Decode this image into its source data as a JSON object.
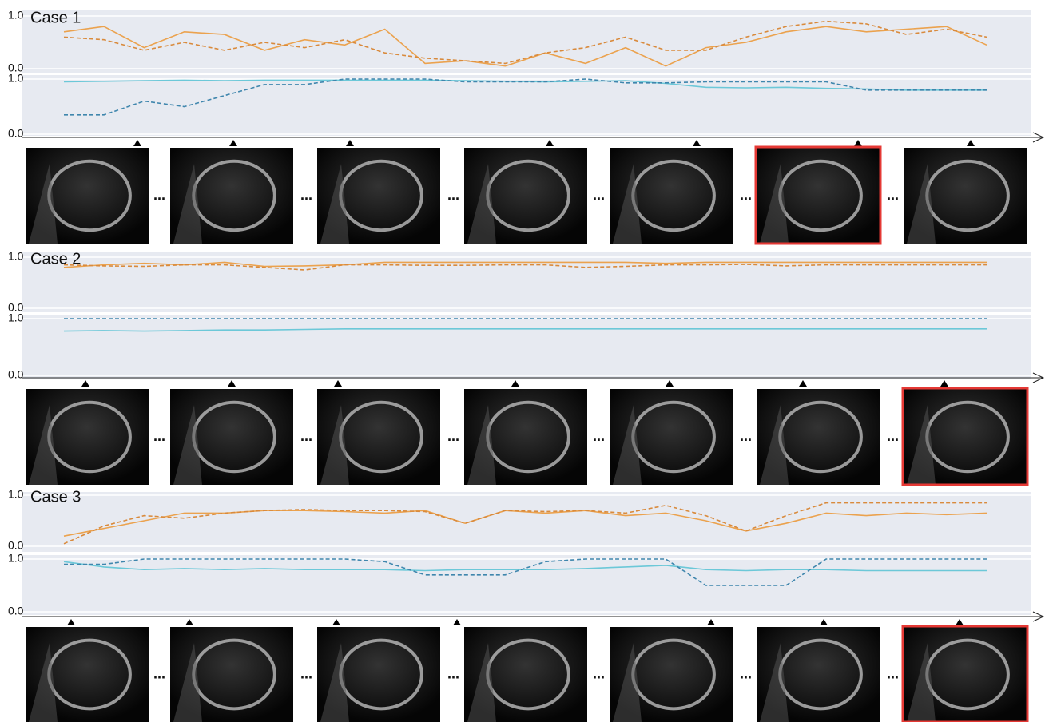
{
  "separator": "...",
  "chart_data": [
    {
      "type": "line",
      "title": "Case 1",
      "ylim": [
        0,
        1
      ],
      "yticks": [
        {
          "value": 0,
          "label": "0.0"
        },
        {
          "value": 1,
          "label": "1.0"
        }
      ],
      "series": [
        {
          "color": "#eba24e",
          "dash": false,
          "values": [
            0.7,
            0.8,
            0.4,
            0.7,
            0.65,
            0.35,
            0.55,
            0.45,
            0.75,
            0.1,
            0.15,
            0.05,
            0.3,
            0.1,
            0.4,
            0.05,
            0.4,
            0.5,
            0.7,
            0.8,
            0.7,
            0.75,
            0.8,
            0.45
          ]
        },
        {
          "color": "#d98a3c",
          "dash": true,
          "values": [
            0.6,
            0.55,
            0.35,
            0.5,
            0.35,
            0.5,
            0.4,
            0.55,
            0.3,
            0.2,
            0.15,
            0.1,
            0.3,
            0.4,
            0.6,
            0.35,
            0.35,
            0.6,
            0.8,
            0.9,
            0.85,
            0.65,
            0.75,
            0.6
          ]
        }
      ]
    },
    {
      "type": "line",
      "ylim": [
        0,
        1
      ],
      "yticks": [
        {
          "value": 0,
          "label": "0.0"
        },
        {
          "value": 1,
          "label": "1.0"
        }
      ],
      "series": [
        {
          "color": "#6cc8d8",
          "dash": false,
          "values": [
            0.95,
            0.96,
            0.97,
            0.98,
            0.97,
            0.98,
            0.98,
            0.98,
            0.98,
            0.98,
            0.97,
            0.96,
            0.95,
            0.96,
            0.97,
            0.92,
            0.85,
            0.84,
            0.85,
            0.83,
            0.82,
            0.8,
            0.8,
            0.8
          ]
        },
        {
          "color": "#3f86ad",
          "dash": true,
          "values": [
            0.35,
            0.35,
            0.6,
            0.5,
            0.7,
            0.9,
            0.9,
            1.0,
            1.0,
            1.0,
            0.95,
            0.95,
            0.95,
            1.0,
            0.93,
            0.93,
            0.95,
            0.95,
            0.95,
            0.95,
            0.8,
            0.8,
            0.8,
            0.8
          ]
        }
      ]
    },
    {
      "type": "line",
      "title": "Case 2",
      "ylim": [
        0,
        1
      ],
      "yticks": [
        {
          "value": 0,
          "label": "0.0"
        },
        {
          "value": 1,
          "label": "1.0"
        }
      ],
      "series": [
        {
          "color": "#eba24e",
          "dash": false,
          "values": [
            0.8,
            0.85,
            0.88,
            0.85,
            0.9,
            0.82,
            0.83,
            0.85,
            0.9,
            0.9,
            0.9,
            0.9,
            0.9,
            0.9,
            0.9,
            0.88,
            0.9,
            0.9,
            0.9,
            0.9,
            0.9,
            0.9,
            0.9,
            0.9
          ]
        },
        {
          "color": "#d98a3c",
          "dash": true,
          "values": [
            0.85,
            0.83,
            0.82,
            0.85,
            0.85,
            0.8,
            0.75,
            0.85,
            0.85,
            0.84,
            0.84,
            0.85,
            0.85,
            0.8,
            0.82,
            0.85,
            0.85,
            0.86,
            0.83,
            0.85,
            0.85,
            0.85,
            0.85,
            0.85
          ]
        }
      ]
    },
    {
      "type": "line",
      "ylim": [
        0,
        1
      ],
      "yticks": [
        {
          "value": 0,
          "label": "0.0"
        },
        {
          "value": 1,
          "label": "1.0"
        }
      ],
      "series": [
        {
          "color": "#6cc8d8",
          "dash": false,
          "values": [
            0.78,
            0.79,
            0.78,
            0.79,
            0.8,
            0.8,
            0.81,
            0.82,
            0.82,
            0.82,
            0.82,
            0.82,
            0.82,
            0.82,
            0.82,
            0.82,
            0.82,
            0.82,
            0.82,
            0.82,
            0.82,
            0.82,
            0.82,
            0.82
          ]
        },
        {
          "color": "#3f86ad",
          "dash": true,
          "values": [
            1.0,
            1.0,
            1.0,
            1.0,
            1.0,
            1.0,
            1.0,
            1.0,
            1.0,
            1.0,
            1.0,
            1.0,
            1.0,
            1.0,
            1.0,
            1.0,
            1.0,
            1.0,
            1.0,
            1.0,
            1.0,
            1.0,
            1.0,
            1.0
          ]
        }
      ]
    },
    {
      "type": "line",
      "title": "Case 3",
      "ylim": [
        0,
        1
      ],
      "yticks": [
        {
          "value": 0,
          "label": "0.0"
        },
        {
          "value": 1,
          "label": "1.0"
        }
      ],
      "series": [
        {
          "color": "#eba24e",
          "dash": false,
          "values": [
            0.2,
            0.35,
            0.5,
            0.65,
            0.65,
            0.7,
            0.7,
            0.68,
            0.65,
            0.7,
            0.45,
            0.7,
            0.65,
            0.7,
            0.6,
            0.65,
            0.5,
            0.3,
            0.45,
            0.65,
            0.6,
            0.65,
            0.62,
            0.65
          ]
        },
        {
          "color": "#d98a3c",
          "dash": true,
          "values": [
            0.05,
            0.4,
            0.6,
            0.55,
            0.65,
            0.7,
            0.72,
            0.7,
            0.7,
            0.68,
            0.45,
            0.7,
            0.68,
            0.7,
            0.65,
            0.8,
            0.6,
            0.3,
            0.6,
            0.85,
            0.85,
            0.85,
            0.85,
            0.85
          ]
        }
      ]
    },
    {
      "type": "line",
      "ylim": [
        0,
        1
      ],
      "yticks": [
        {
          "value": 0,
          "label": "0.0"
        },
        {
          "value": 1,
          "label": "1.0"
        }
      ],
      "series": [
        {
          "color": "#6cc8d8",
          "dash": false,
          "values": [
            0.95,
            0.85,
            0.8,
            0.82,
            0.8,
            0.82,
            0.8,
            0.8,
            0.8,
            0.78,
            0.8,
            0.8,
            0.8,
            0.82,
            0.85,
            0.88,
            0.8,
            0.78,
            0.8,
            0.8,
            0.78,
            0.78,
            0.78,
            0.78
          ]
        },
        {
          "color": "#3f86ad",
          "dash": true,
          "values": [
            0.9,
            0.9,
            1.0,
            1.0,
            1.0,
            1.0,
            1.0,
            1.0,
            0.95,
            0.7,
            0.7,
            0.7,
            0.95,
            1.0,
            1.0,
            1.0,
            0.5,
            0.5,
            0.5,
            1.0,
            1.0,
            1.0,
            1.0,
            1.0
          ]
        }
      ]
    }
  ]
}
